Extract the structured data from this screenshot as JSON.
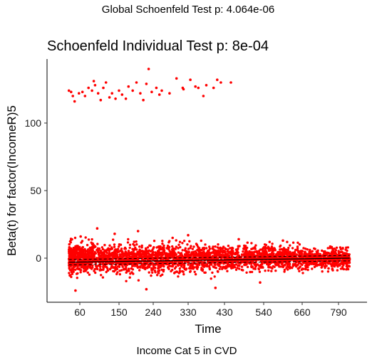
{
  "header": {
    "global_test": "Global Schoenfeld Test p: 4.064e-06"
  },
  "chart_data": {
    "type": "scatter",
    "title": "Schoenfeld Individual Test p: 8e-04",
    "xlabel": "Time",
    "ylabel": "Beta(t) for factor(IncomeR)5",
    "caption": "Income Cat 5 in CVD",
    "x_ticks": [
      {
        "label": "60",
        "value": 60
      },
      {
        "label": "150",
        "value": 150
      },
      {
        "label": "240",
        "value": 240
      },
      {
        "label": "330",
        "value": 330
      },
      {
        "label": "430",
        "value": 430
      },
      {
        "label": "540",
        "value": 540
      },
      {
        "label": "660",
        "value": 660
      },
      {
        "label": "790",
        "value": 790
      }
    ],
    "y_ticks": [
      0,
      50,
      100
    ],
    "ylim": [
      -27,
      150
    ],
    "point_color": "#ff0000",
    "fit_color": "#000000",
    "grid": false,
    "legend": false,
    "outlier_cluster_points": [
      {
        "x": 35,
        "y": 124
      },
      {
        "x": 40,
        "y": 123
      },
      {
        "x": 44,
        "y": 120
      },
      {
        "x": 48,
        "y": 116
      },
      {
        "x": 58,
        "y": 122
      },
      {
        "x": 66,
        "y": 123
      },
      {
        "x": 72,
        "y": 120
      },
      {
        "x": 80,
        "y": 126
      },
      {
        "x": 88,
        "y": 124
      },
      {
        "x": 92,
        "y": 131
      },
      {
        "x": 95,
        "y": 128
      },
      {
        "x": 102,
        "y": 122
      },
      {
        "x": 108,
        "y": 117
      },
      {
        "x": 114,
        "y": 126
      },
      {
        "x": 120,
        "y": 130
      },
      {
        "x": 128,
        "y": 119
      },
      {
        "x": 134,
        "y": 122
      },
      {
        "x": 142,
        "y": 118
      },
      {
        "x": 150,
        "y": 124
      },
      {
        "x": 158,
        "y": 121
      },
      {
        "x": 168,
        "y": 118
      },
      {
        "x": 175,
        "y": 127
      },
      {
        "x": 186,
        "y": 124
      },
      {
        "x": 196,
        "y": 130
      },
      {
        "x": 206,
        "y": 122
      },
      {
        "x": 214,
        "y": 117
      },
      {
        "x": 222,
        "y": 129
      },
      {
        "x": 228,
        "y": 140
      },
      {
        "x": 236,
        "y": 123
      },
      {
        "x": 248,
        "y": 126
      },
      {
        "x": 256,
        "y": 121
      },
      {
        "x": 262,
        "y": 124
      },
      {
        "x": 282,
        "y": 122
      },
      {
        "x": 300,
        "y": 133
      },
      {
        "x": 316,
        "y": 126
      },
      {
        "x": 336,
        "y": 132
      },
      {
        "x": 358,
        "y": 126
      },
      {
        "x": 380,
        "y": 128
      },
      {
        "x": 410,
        "y": 132
      },
      {
        "x": 420,
        "y": 130
      },
      {
        "x": 448,
        "y": 130
      },
      {
        "x": 318,
        "y": 125
      },
      {
        "x": 350,
        "y": 127
      },
      {
        "x": 372,
        "y": 120
      },
      {
        "x": 400,
        "y": 126
      }
    ],
    "main_band": {
      "points": 3200,
      "x_range": [
        35,
        830
      ],
      "y_center": 0,
      "y_spread": 10,
      "extremes": [
        {
          "x": 50,
          "y": -24
        },
        {
          "x": 62,
          "y": 16
        },
        {
          "x": 100,
          "y": 22
        },
        {
          "x": 140,
          "y": 18
        },
        {
          "x": 200,
          "y": 20
        },
        {
          "x": 222,
          "y": -23
        },
        {
          "x": 290,
          "y": 15
        },
        {
          "x": 330,
          "y": 17
        },
        {
          "x": 405,
          "y": -22
        },
        {
          "x": 470,
          "y": 14
        },
        {
          "x": 530,
          "y": -18
        },
        {
          "x": 600,
          "y": 13
        }
      ]
    },
    "fit_line": [
      {
        "x": 35,
        "y": -3
      },
      {
        "x": 830,
        "y": 0
      }
    ],
    "ci_band": [
      {
        "x": 35,
        "lo": -5,
        "hi": -1
      },
      {
        "x": 830,
        "lo": -2,
        "hi": 2
      }
    ]
  }
}
